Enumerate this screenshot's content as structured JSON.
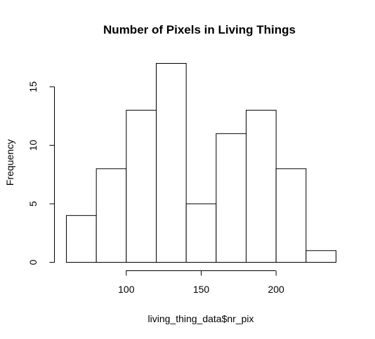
{
  "chart_data": {
    "type": "bar",
    "title": "Number of Pixels in Living Things",
    "xlabel": "living_thing_data$nr_pix",
    "ylabel": "Frequency",
    "bins": [
      {
        "x0": 60,
        "x1": 80,
        "count": 4
      },
      {
        "x0": 80,
        "x1": 100,
        "count": 8
      },
      {
        "x0": 100,
        "x1": 120,
        "count": 13
      },
      {
        "x0": 120,
        "x1": 140,
        "count": 17
      },
      {
        "x0": 140,
        "x1": 160,
        "count": 5
      },
      {
        "x0": 160,
        "x1": 180,
        "count": 11
      },
      {
        "x0": 180,
        "x1": 200,
        "count": 13
      },
      {
        "x0": 200,
        "x1": 220,
        "count": 8
      },
      {
        "x0": 220,
        "x1": 240,
        "count": 1
      }
    ],
    "xticks": [
      100,
      150,
      200
    ],
    "yticks": [
      0,
      5,
      10,
      15
    ],
    "grid": false
  }
}
